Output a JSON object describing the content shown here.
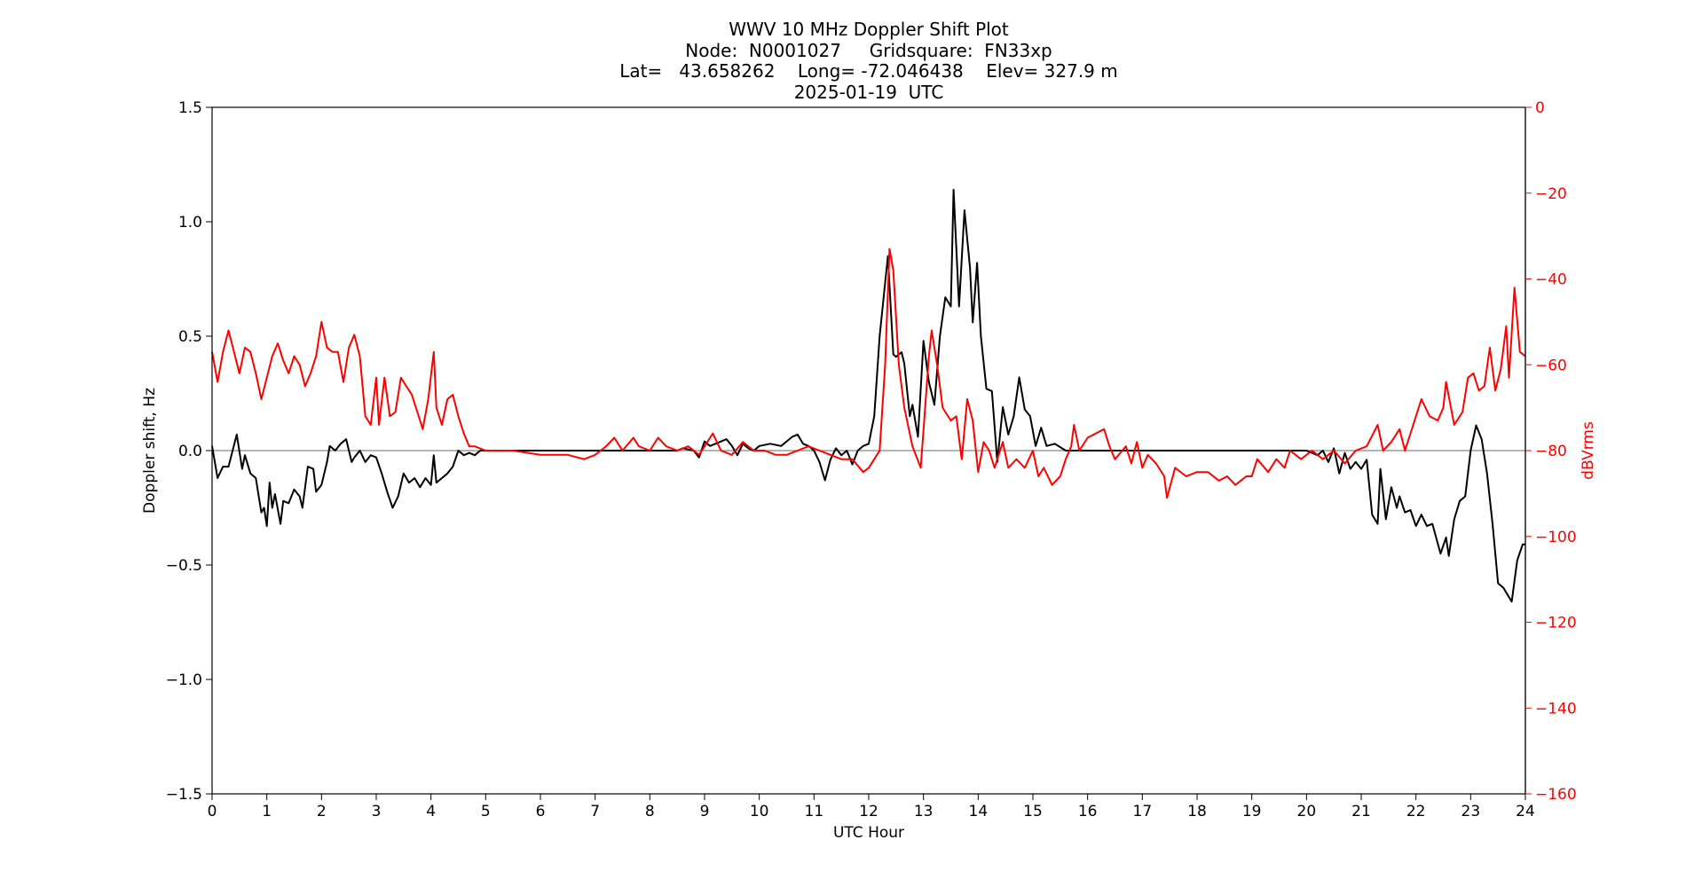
{
  "chart_data": {
    "type": "line",
    "title_lines": [
      "WWV 10 MHz Doppler Shift Plot",
      "Node:  N0001027     Gridsquare:  FN33xp",
      "Lat=   43.658262    Long= -72.046438    Elev= 327.9 m",
      "2025-01-19  UTC"
    ],
    "xlabel": "UTC Hour",
    "ylabel": "Doppler shift, Hz",
    "y2label": "dBVrms",
    "xlim": [
      0,
      24
    ],
    "ylim": [
      -1.5,
      1.5
    ],
    "y2lim": [
      -160,
      0
    ],
    "xticks": [
      "0",
      "1",
      "2",
      "3",
      "4",
      "5",
      "6",
      "7",
      "8",
      "9",
      "10",
      "11",
      "12",
      "13",
      "14",
      "15",
      "16",
      "17",
      "18",
      "19",
      "20",
      "21",
      "22",
      "23",
      "24"
    ],
    "yticks": [
      "−1.5",
      "−1.0",
      "−0.5",
      "0.0",
      "0.5",
      "1.0",
      "1.5"
    ],
    "ytick_values": [
      -1.5,
      -1.0,
      -0.5,
      0.0,
      0.5,
      1.0,
      1.5
    ],
    "y2ticks": [
      "−160",
      "−140",
      "−120",
      "−100",
      "−80",
      "−60",
      "−40",
      "−20",
      "0"
    ],
    "y2tick_values": [
      -160,
      -140,
      -120,
      -100,
      -80,
      -60,
      -40,
      -20,
      0
    ],
    "grid": false,
    "zero_line": 0.0,
    "colors": {
      "doppler": "#000000",
      "power": "#ff0000",
      "zero_line": "#888888",
      "y2axis": "#ff0000"
    },
    "series": [
      {
        "axis": "left",
        "color": "#000000",
        "x": [
          0,
          0.1,
          0.2,
          0.3,
          0.45,
          0.55,
          0.6,
          0.7,
          0.8,
          0.9,
          0.95,
          1.0,
          1.05,
          1.1,
          1.15,
          1.25,
          1.3,
          1.4,
          1.5,
          1.6,
          1.65,
          1.75,
          1.85,
          1.9,
          2.0,
          2.1,
          2.15,
          2.25,
          2.35,
          2.45,
          2.55,
          2.6,
          2.7,
          2.8,
          2.9,
          3.0,
          3.1,
          3.2,
          3.3,
          3.4,
          3.5,
          3.6,
          3.7,
          3.8,
          3.9,
          4.0,
          4.05,
          4.1,
          4.2,
          4.3,
          4.4,
          4.5,
          4.6,
          4.7,
          4.8,
          4.9,
          5.0,
          6.0,
          7.0,
          8.0,
          8.5,
          8.6,
          8.8,
          8.9,
          9.0,
          9.1,
          9.2,
          9.3,
          9.4,
          9.5,
          9.6,
          9.7,
          9.8,
          9.9,
          10.0,
          10.2,
          10.4,
          10.6,
          10.7,
          10.8,
          10.9,
          11.0,
          11.1,
          11.2,
          11.3,
          11.4,
          11.5,
          11.6,
          11.7,
          11.8,
          11.9,
          12.0,
          12.1,
          12.2,
          12.35,
          12.45,
          12.5,
          12.6,
          12.65,
          12.75,
          12.8,
          12.9,
          13.0,
          13.1,
          13.2,
          13.3,
          13.4,
          13.5,
          13.55,
          13.65,
          13.75,
          13.85,
          13.9,
          13.98,
          14.05,
          14.15,
          14.25,
          14.35,
          14.45,
          14.55,
          14.65,
          14.75,
          14.85,
          14.95,
          15.05,
          15.15,
          15.25,
          15.4,
          15.6,
          17.0,
          18.0,
          19.0,
          19.8,
          20.0,
          20.2,
          20.3,
          20.4,
          20.5,
          20.6,
          20.7,
          20.8,
          20.9,
          21.0,
          21.1,
          21.2,
          21.3,
          21.35,
          21.45,
          21.55,
          21.65,
          21.7,
          21.8,
          21.9,
          22.0,
          22.1,
          22.2,
          22.3,
          22.45,
          22.55,
          22.6,
          22.7,
          22.8,
          22.9,
          23.0,
          23.1,
          23.2,
          23.3,
          23.4,
          23.5,
          23.6,
          23.75,
          23.85,
          23.95,
          24.0
        ],
        "y": [
          0.02,
          -0.12,
          -0.07,
          -0.07,
          0.07,
          -0.08,
          -0.02,
          -0.1,
          -0.12,
          -0.27,
          -0.25,
          -0.33,
          -0.14,
          -0.25,
          -0.19,
          -0.32,
          -0.22,
          -0.23,
          -0.17,
          -0.2,
          -0.25,
          -0.07,
          -0.08,
          -0.18,
          -0.15,
          -0.05,
          0.02,
          0.0,
          0.03,
          0.05,
          -0.05,
          -0.03,
          0.0,
          -0.05,
          -0.02,
          -0.03,
          -0.1,
          -0.18,
          -0.25,
          -0.2,
          -0.1,
          -0.14,
          -0.12,
          -0.16,
          -0.12,
          -0.15,
          -0.02,
          -0.14,
          -0.12,
          -0.1,
          -0.07,
          0.0,
          -0.02,
          -0.01,
          -0.02,
          0.0,
          0.0,
          0.0,
          0.0,
          0.0,
          0.0,
          0.01,
          0.0,
          -0.03,
          0.04,
          0.02,
          0.03,
          0.04,
          0.05,
          0.02,
          -0.02,
          0.03,
          0.01,
          0.0,
          0.02,
          0.03,
          0.02,
          0.06,
          0.07,
          0.03,
          0.02,
          0.0,
          -0.05,
          -0.13,
          -0.04,
          0.01,
          -0.02,
          0.0,
          -0.06,
          0.0,
          0.02,
          0.03,
          0.15,
          0.5,
          0.85,
          0.42,
          0.41,
          0.43,
          0.38,
          0.15,
          0.2,
          0.06,
          0.48,
          0.3,
          0.2,
          0.5,
          0.67,
          0.63,
          1.14,
          0.63,
          1.05,
          0.8,
          0.56,
          0.82,
          0.5,
          0.27,
          0.26,
          -0.05,
          0.19,
          0.07,
          0.15,
          0.32,
          0.18,
          0.15,
          0.02,
          0.1,
          0.02,
          0.03,
          0.0,
          0.0,
          0.0,
          0.0,
          0.0,
          0.0,
          -0.02,
          0.0,
          -0.05,
          0.01,
          -0.1,
          -0.01,
          -0.08,
          -0.05,
          -0.08,
          -0.04,
          -0.28,
          -0.32,
          -0.08,
          -0.3,
          -0.16,
          -0.25,
          -0.2,
          -0.27,
          -0.26,
          -0.33,
          -0.28,
          -0.33,
          -0.32,
          -0.45,
          -0.38,
          -0.46,
          -0.3,
          -0.22,
          -0.2,
          0.0,
          0.11,
          0.05,
          -0.1,
          -0.32,
          -0.58,
          -0.6,
          -0.66,
          -0.48,
          -0.41,
          -0.41
        ]
      },
      {
        "axis": "right",
        "color": "#ff0000",
        "x": [
          0,
          0.1,
          0.2,
          0.3,
          0.4,
          0.5,
          0.6,
          0.7,
          0.8,
          0.9,
          1.0,
          1.1,
          1.2,
          1.3,
          1.4,
          1.5,
          1.6,
          1.7,
          1.8,
          1.9,
          2.0,
          2.1,
          2.2,
          2.3,
          2.4,
          2.5,
          2.6,
          2.7,
          2.8,
          2.9,
          3.0,
          3.05,
          3.15,
          3.25,
          3.35,
          3.45,
          3.55,
          3.65,
          3.75,
          3.85,
          3.95,
          4.05,
          4.1,
          4.2,
          4.3,
          4.4,
          4.5,
          4.6,
          4.7,
          4.8,
          5.0,
          5.5,
          6.0,
          6.5,
          6.8,
          7.0,
          7.2,
          7.35,
          7.5,
          7.7,
          7.8,
          8.0,
          8.15,
          8.3,
          8.5,
          8.7,
          8.9,
          9.0,
          9.15,
          9.3,
          9.5,
          9.7,
          9.9,
          10.1,
          10.3,
          10.5,
          10.7,
          10.9,
          11.1,
          11.3,
          11.5,
          11.7,
          11.9,
          12.0,
          12.1,
          12.2,
          12.3,
          12.38,
          12.45,
          12.55,
          12.65,
          12.8,
          12.95,
          13.1,
          13.15,
          13.25,
          13.35,
          13.5,
          13.6,
          13.7,
          13.8,
          13.9,
          14.0,
          14.1,
          14.2,
          14.3,
          14.45,
          14.55,
          14.7,
          14.85,
          15.0,
          15.1,
          15.2,
          15.35,
          15.5,
          15.6,
          15.7,
          15.75,
          15.85,
          16.0,
          16.15,
          16.3,
          16.4,
          16.5,
          16.7,
          16.8,
          16.9,
          17.0,
          17.1,
          17.25,
          17.4,
          17.45,
          17.6,
          17.8,
          18.0,
          18.2,
          18.4,
          18.55,
          18.7,
          18.9,
          19.0,
          19.1,
          19.3,
          19.45,
          19.6,
          19.7,
          19.9,
          20.1,
          20.3,
          20.5,
          20.7,
          20.9,
          21.1,
          21.3,
          21.4,
          21.55,
          21.7,
          21.8,
          21.95,
          22.1,
          22.25,
          22.4,
          22.5,
          22.55,
          22.7,
          22.85,
          22.95,
          23.05,
          23.15,
          23.25,
          23.35,
          23.45,
          23.55,
          23.65,
          23.7,
          23.8,
          23.9,
          24.0
        ],
        "y": [
          -57,
          -64,
          -57,
          -52,
          -57,
          -62,
          -56,
          -57,
          -62,
          -68,
          -63,
          -58,
          -55,
          -59,
          -62,
          -58,
          -60,
          -65,
          -62,
          -58,
          -50,
          -56,
          -57,
          -57,
          -64,
          -56,
          -53,
          -58,
          -72,
          -74,
          -63,
          -74,
          -63,
          -72,
          -71,
          -63,
          -65,
          -67,
          -71,
          -75,
          -68,
          -57,
          -70,
          -74,
          -68,
          -67,
          -72,
          -76,
          -79,
          -79,
          -80,
          -80,
          -81,
          -81,
          -82,
          -81,
          -79,
          -77,
          -80,
          -77,
          -79,
          -80,
          -77,
          -79,
          -80,
          -79,
          -81,
          -79,
          -76,
          -80,
          -81,
          -78,
          -80,
          -80,
          -81,
          -81,
          -80,
          -79,
          -80,
          -81,
          -82,
          -82,
          -85,
          -84,
          -82,
          -80,
          -60,
          -33,
          -38,
          -60,
          -70,
          -79,
          -84,
          -58,
          -52,
          -60,
          -70,
          -73,
          -72,
          -82,
          -68,
          -73,
          -85,
          -78,
          -80,
          -84,
          -78,
          -84,
          -82,
          -84,
          -80,
          -86,
          -84,
          -88,
          -86,
          -82,
          -79,
          -74,
          -80,
          -77,
          -76,
          -75,
          -79,
          -82,
          -79,
          -83,
          -78,
          -84,
          -81,
          -83,
          -86,
          -91,
          -84,
          -86,
          -85,
          -85,
          -87,
          -86,
          -88,
          -86,
          -86,
          -82,
          -85,
          -82,
          -84,
          -80,
          -82,
          -80,
          -82,
          -80,
          -83,
          -80,
          -79,
          -74,
          -80,
          -78,
          -75,
          -80,
          -74,
          -68,
          -72,
          -73,
          -70,
          -64,
          -74,
          -71,
          -63,
          -62,
          -66,
          -65,
          -56,
          -66,
          -61,
          -51,
          -63,
          -42,
          -57,
          -58
        ]
      }
    ]
  }
}
